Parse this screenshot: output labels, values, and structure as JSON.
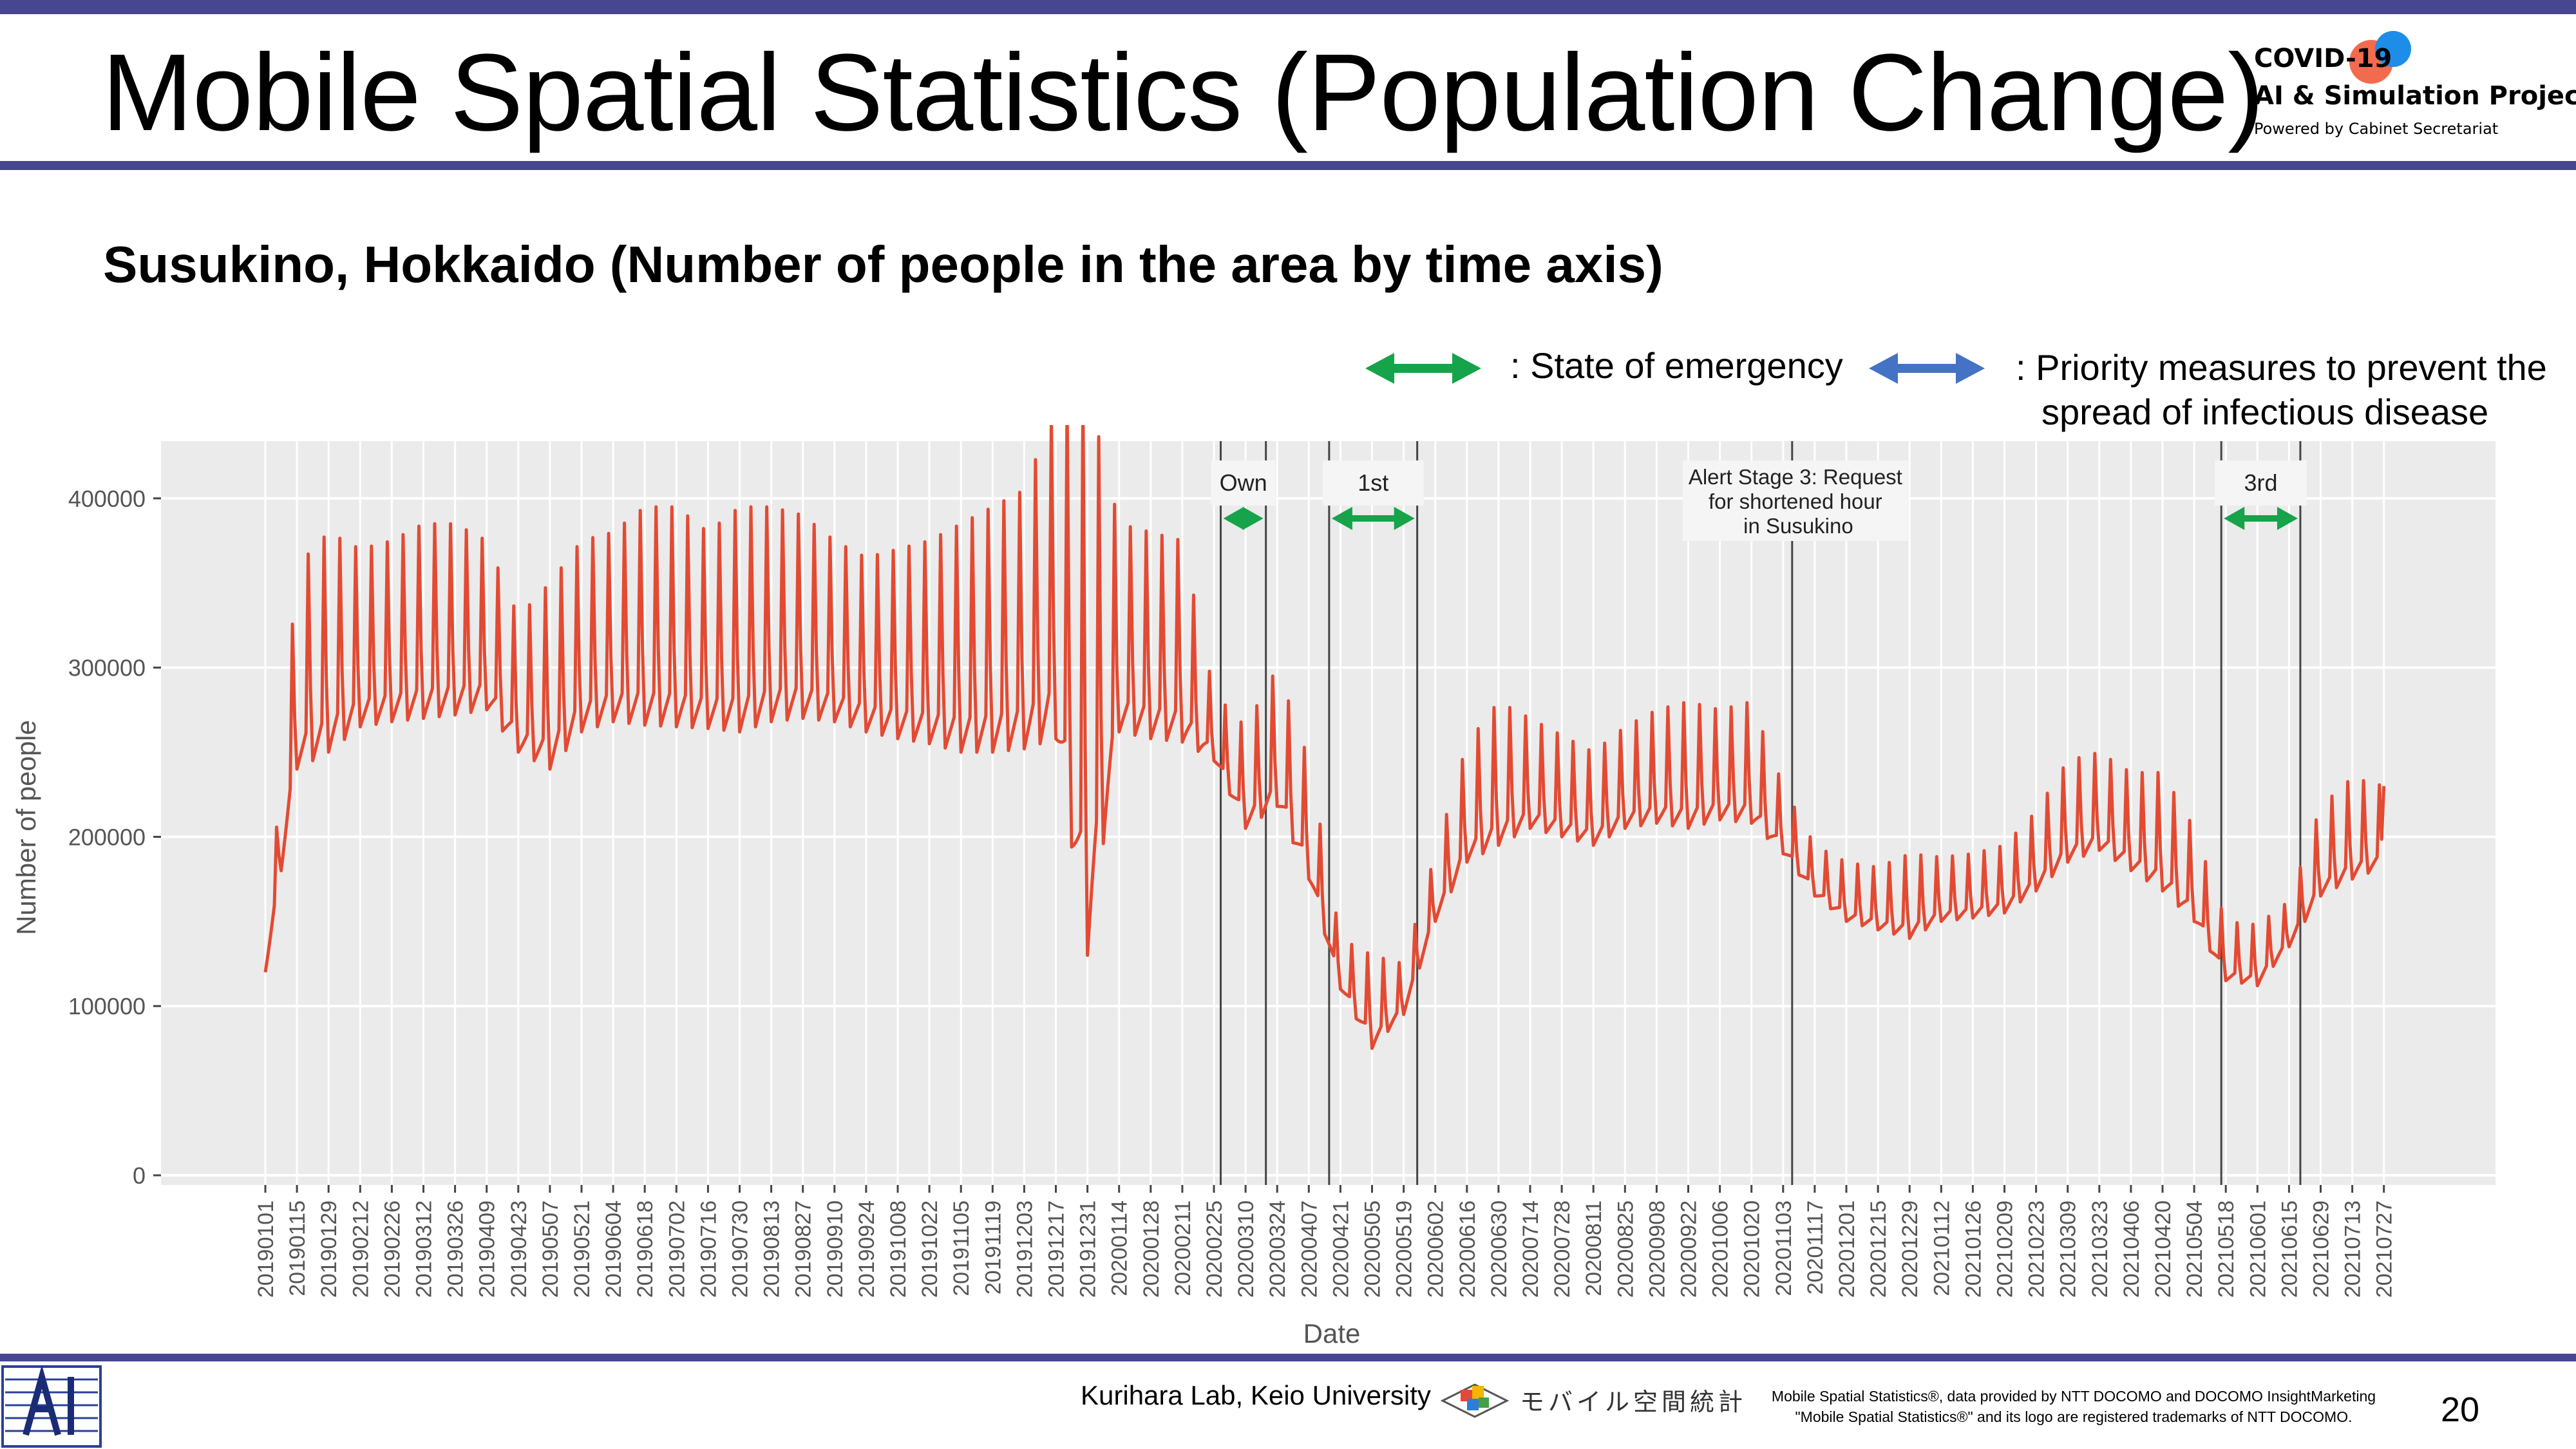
{
  "header": {
    "title": "Mobile Spatial Statistics (Population Change)",
    "logo": {
      "line1": "COVID-19",
      "line2": "AI & Simulation Project",
      "line3": "Powered by Cabinet Secretariat"
    }
  },
  "subtitle": "Susukino, Hokkaido (Number of people in the area by time axis)",
  "legend": {
    "emergency": ": State of emergency",
    "priority_line1": ": Priority measures to prevent the",
    "priority_line2": "spread of infectious disease",
    "colors": {
      "emergency": "#16a34a",
      "priority": "#4472c4"
    }
  },
  "chart_data": {
    "type": "line",
    "xlabel": "Date",
    "ylabel": "Number of people",
    "ylim": [
      0,
      430000
    ],
    "yticks": [
      0,
      100000,
      200000,
      300000,
      400000
    ],
    "grid": true,
    "line_color": "#e34a33",
    "x_tick_labels": [
      "20190101",
      "20190115",
      "20190129",
      "20190212",
      "20190226",
      "20190312",
      "20190326",
      "20190409",
      "20190423",
      "20190507",
      "20190521",
      "20190604",
      "20190618",
      "20190702",
      "20190716",
      "20190730",
      "20190813",
      "20190827",
      "20190910",
      "20190924",
      "20191008",
      "20191022",
      "20191105",
      "20191119",
      "20191203",
      "20191217",
      "20191231",
      "20200114",
      "20200128",
      "20200211",
      "20200225",
      "20200310",
      "20200324",
      "20200407",
      "20200421",
      "20200505",
      "20200519",
      "20200602",
      "20200616",
      "20200630",
      "20200714",
      "20200728",
      "20200811",
      "20200825",
      "20200908",
      "20200922",
      "20201006",
      "20201020",
      "20201103",
      "20201117",
      "20201201",
      "20201215",
      "20201229",
      "20210112",
      "20210126",
      "20210209",
      "20210223",
      "20210309",
      "20210323",
      "20210406",
      "20210420",
      "20210504",
      "20210518",
      "20210601",
      "20210615",
      "20210629",
      "20210713",
      "20210727"
    ],
    "series": [
      {
        "x_dates_every_two_weeks": [
          "20190101",
          "20190115",
          "20190129",
          "20190212",
          "20190226",
          "20190312",
          "20190326",
          "20190409",
          "20190423",
          "20190507",
          "20190521",
          "20190604",
          "20190618",
          "20190702",
          "20190716",
          "20190730",
          "20190813",
          "20190827",
          "20190910",
          "20190924",
          "20191008",
          "20191022",
          "20191105",
          "20191119",
          "20191203",
          "20191217",
          "20191231",
          "20200114",
          "20200128",
          "20200211",
          "20200225",
          "20200310",
          "20200324",
          "20200407",
          "20200421",
          "20200505",
          "20200519",
          "20200602",
          "20200616",
          "20200630",
          "20200714",
          "20200728",
          "20200811",
          "20200825",
          "20200908",
          "20200922",
          "20201006",
          "20201020",
          "20201103",
          "20201117",
          "20201201",
          "20201215",
          "20201229",
          "20210112",
          "20210126",
          "20210209",
          "20210223",
          "20210309",
          "20210323",
          "20210406",
          "20210420",
          "20210504",
          "20210518",
          "20210601",
          "20210615",
          "20210629",
          "20210713",
          "20210727"
        ],
        "weekday_low": [
          120000,
          240000,
          250000,
          265000,
          268000,
          270000,
          272000,
          275000,
          250000,
          240000,
          262000,
          268000,
          266000,
          265000,
          264000,
          262000,
          268000,
          270000,
          268000,
          262000,
          258000,
          255000,
          250000,
          250000,
          252000,
          258000,
          130000,
          262000,
          258000,
          256000,
          245000,
          205000,
          218000,
          175000,
          110000,
          75000,
          95000,
          150000,
          185000,
          195000,
          205000,
          200000,
          195000,
          205000,
          208000,
          205000,
          210000,
          208000,
          190000,
          165000,
          150000,
          145000,
          140000,
          150000,
          152000,
          155000,
          168000,
          185000,
          192000,
          180000,
          168000,
          150000,
          115000,
          112000,
          135000,
          165000,
          175000,
          182000
        ],
        "weekend_peak": [
          120000,
          360000,
          380000,
          370000,
          375000,
          385000,
          385000,
          375000,
          330000,
          350000,
          375000,
          380000,
          395000,
          395000,
          380000,
          395000,
          395000,
          390000,
          375000,
          365000,
          370000,
          375000,
          385000,
          395000,
          405000,
          455000,
          465000,
          385000,
          380000,
          375000,
          285000,
          265000,
          300000,
          245000,
          140000,
          130000,
          125000,
          190000,
          255000,
          280000,
          270000,
          260000,
          250000,
          265000,
          275000,
          280000,
          275000,
          280000,
          230000,
          195000,
          185000,
          182000,
          190000,
          188000,
          190000,
          195000,
          215000,
          245000,
          250000,
          238000,
          238000,
          205000,
          150000,
          148000,
          162000,
          218000,
          235000,
          230000
        ]
      }
    ],
    "periods": [
      {
        "label": "Own",
        "kind": "emergency",
        "start": "20200228",
        "end": "20200319"
      },
      {
        "label": "1st",
        "kind": "emergency",
        "start": "20200416",
        "end": "20200525"
      },
      {
        "label": "Alert Stage 3: Request for shortened hours in Susukino",
        "kind": "alert",
        "start": "20201107"
      },
      {
        "label": "3rd",
        "kind": "emergency",
        "start": "20210516",
        "end": "20210620"
      }
    ]
  },
  "footer": {
    "credit": "Kurihara Lab, Keio University",
    "mobile_logo": "モバイル空間統計",
    "note_line1": "Mobile Spatial Statistics®, data provided by NTT DOCOMO and DOCOMO InsightMarketing",
    "note_line2": "\"Mobile Spatial Statistics®\" and its logo are registered trademarks of NTT DOCOMO.",
    "page_number": "20"
  }
}
